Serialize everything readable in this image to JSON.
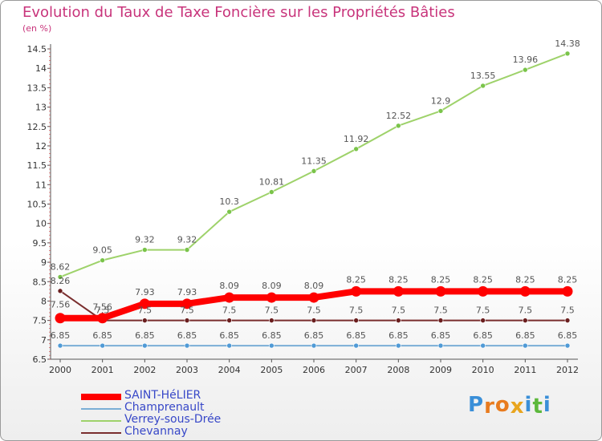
{
  "title": "Evolution du Taux de Taxe Foncière sur les Propriétés Bâties",
  "unit": "(en %)",
  "logo": {
    "text": "Proxiti",
    "letters": [
      "P",
      "r",
      "o",
      "x",
      "i",
      "t",
      "i"
    ],
    "colors": [
      "#3a8fd8",
      "#e87b1e",
      "#e87b1e",
      "#e8a51e",
      "#3a8fd8",
      "#5cb83c",
      "#3a8fd8"
    ]
  },
  "chart_data": {
    "type": "line",
    "title": "Evolution du Taux de Taxe Foncière sur les Propriétés Bâties",
    "ylabel": "(en %)",
    "xlabel": "",
    "x": [
      "2000",
      "2001",
      "2002",
      "2003",
      "2004",
      "2005",
      "2006",
      "2007",
      "2008",
      "2009",
      "2010",
      "2011",
      "2012"
    ],
    "ylim": [
      6.5,
      14.5
    ],
    "yticks": [
      "6.5",
      "7",
      "7.5",
      "8",
      "8.5",
      "9",
      "9.5",
      "10",
      "10.5",
      "11",
      "11.5",
      "12",
      "12.5",
      "13",
      "13.5",
      "14",
      "14.5"
    ],
    "grid": false,
    "legend_position": "bottom-left",
    "series": [
      {
        "name": "SAINT-HéLIER",
        "color": "#ff0000",
        "values": [
          7.56,
          7.56,
          7.93,
          7.93,
          8.09,
          8.09,
          8.09,
          8.25,
          8.25,
          8.25,
          8.25,
          8.25,
          8.25
        ],
        "labels": [
          "7.56",
          "7.56",
          "7.93",
          "7.93",
          "8.09",
          "8.09",
          "8.09",
          "8.25",
          "8.25",
          "8.25",
          "8.25",
          "8.25",
          "8.25"
        ]
      },
      {
        "name": "Champrenault",
        "color": "#7aaed6",
        "values": [
          6.85,
          6.85,
          6.85,
          6.85,
          6.85,
          6.85,
          6.85,
          6.85,
          6.85,
          6.85,
          6.85,
          6.85,
          6.85
        ],
        "labels": [
          "6.85",
          "6.85",
          "6.85",
          "6.85",
          "6.85",
          "6.85",
          "6.85",
          "6.85",
          "6.85",
          "6.85",
          "6.85",
          "6.85",
          "6.85"
        ]
      },
      {
        "name": "Verrey-sous-Drée",
        "color": "#9ed26a",
        "values": [
          8.62,
          9.05,
          9.32,
          9.32,
          10.3,
          10.81,
          11.35,
          11.92,
          12.52,
          12.9,
          13.55,
          13.96,
          14.38
        ],
        "labels": [
          "8.62",
          "9.05",
          "9.32",
          "9.32",
          "10.3",
          "10.81",
          "11.35",
          "11.92",
          "12.52",
          "12.9",
          "13.55",
          "13.96",
          "14.38"
        ]
      },
      {
        "name": "Chevannay",
        "color": "#7a2e2e",
        "values": [
          8.26,
          7.5,
          7.5,
          7.5,
          7.5,
          7.5,
          7.5,
          7.5,
          7.5,
          7.5,
          7.5,
          7.5,
          7.5
        ],
        "labels": [
          "8.26",
          "7.5",
          "7.5",
          "7.5",
          "7.5",
          "7.5",
          "7.5",
          "7.5",
          "7.5",
          "7.5",
          "7.5",
          "7.5",
          "7.5"
        ]
      }
    ]
  }
}
